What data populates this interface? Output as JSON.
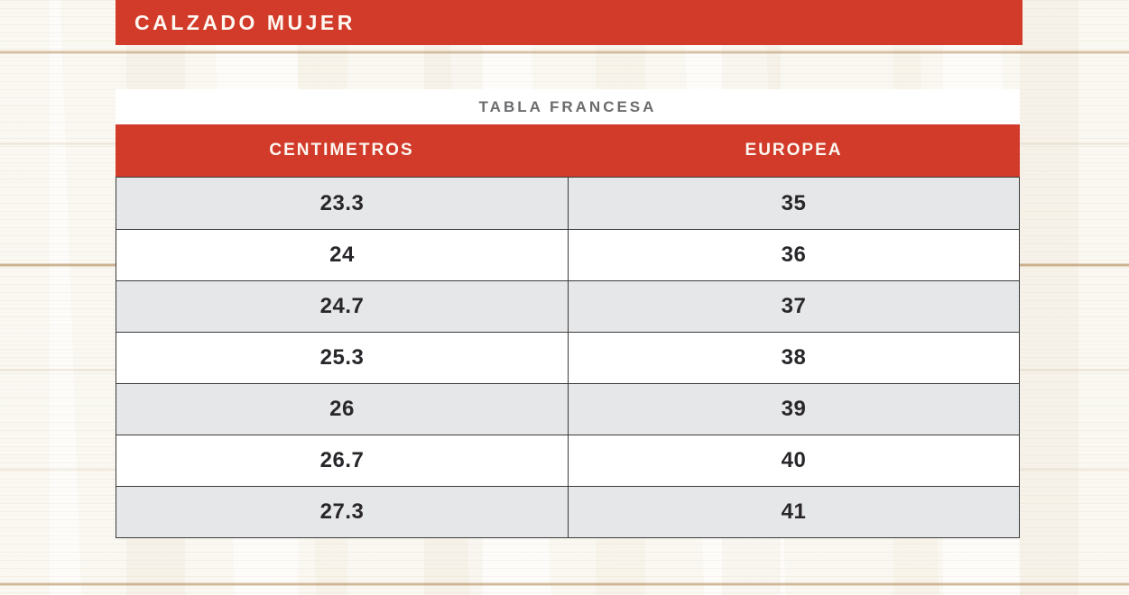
{
  "banner": {
    "title": "CALZADO MUJER"
  },
  "table": {
    "title": "TABLA FRANCESA",
    "headers": [
      "CENTIMETROS",
      "EUROPEA"
    ],
    "rows": [
      {
        "cm": "23.3",
        "eu": "35"
      },
      {
        "cm": "24",
        "eu": "36"
      },
      {
        "cm": "24.7",
        "eu": "37"
      },
      {
        "cm": "25.3",
        "eu": "38"
      },
      {
        "cm": "26",
        "eu": "39"
      },
      {
        "cm": "26.7",
        "eu": "40"
      },
      {
        "cm": "27.3",
        "eu": "41"
      }
    ]
  },
  "colors": {
    "accent_red": "#d23b2a",
    "row_alt_gray": "#e6e7e8",
    "border_dark": "#3b3b3b",
    "title_gray": "#6b6c6e"
  }
}
